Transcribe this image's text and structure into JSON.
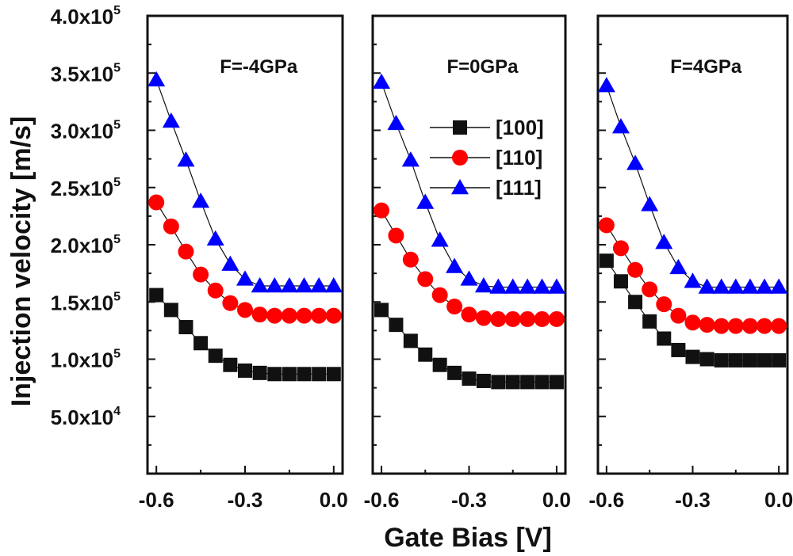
{
  "chart_data": {
    "type": "scatter",
    "title": "",
    "xlabel": "Gate Bias [V]",
    "ylabel": "Injection velocity [m/s]",
    "x": [
      -0.6,
      -0.55,
      -0.5,
      -0.45,
      -0.4,
      -0.35,
      -0.3,
      -0.25,
      -0.2,
      -0.15,
      -0.1,
      -0.05,
      0.0
    ],
    "xlim": [
      -0.63,
      0.03
    ],
    "ylim": [
      0,
      400000
    ],
    "x_ticks": [
      {
        "value": -0.6,
        "label": "-0.6"
      },
      {
        "value": -0.3,
        "label": "-0.3"
      },
      {
        "value": 0.0,
        "label": "0.0"
      }
    ],
    "y_ticks": [
      {
        "value": 50000,
        "mant": "5.0x10",
        "exp": "4"
      },
      {
        "value": 100000,
        "mant": "1.0x10",
        "exp": "5"
      },
      {
        "value": 150000,
        "mant": "1.5x10",
        "exp": "5"
      },
      {
        "value": 200000,
        "mant": "2.0x10",
        "exp": "5"
      },
      {
        "value": 250000,
        "mant": "2.5x10",
        "exp": "5"
      },
      {
        "value": 300000,
        "mant": "3.0x10",
        "exp": "5"
      },
      {
        "value": 350000,
        "mant": "3.5x10",
        "exp": "5"
      },
      {
        "value": 400000,
        "mant": "4.0x10",
        "exp": "5"
      }
    ],
    "legend": {
      "placement": "upper-right of middle panel",
      "entries": [
        {
          "label": "[100]",
          "marker": "square",
          "color": "#111111"
        },
        {
          "label": "[110]",
          "marker": "circle",
          "color": "#ff0000"
        },
        {
          "label": "[111]",
          "marker": "triangle",
          "color": "#0000ff"
        }
      ]
    },
    "panels": [
      {
        "label": "F=-4GPa",
        "series": [
          {
            "name": "[100]",
            "values": [
              156000,
              143000,
              128000,
              114000,
              103000,
              95000,
              90000,
              88000,
              87000,
              87000,
              87000,
              87000,
              87000
            ]
          },
          {
            "name": "[110]",
            "values": [
              237000,
              216000,
              194000,
              174000,
              160000,
              149000,
              143000,
              139000,
              138000,
              138000,
              138000,
              138000,
              138000
            ]
          },
          {
            "name": "[111]",
            "values": [
              344000,
              308000,
              274000,
              238000,
              205000,
              183000,
              170000,
              164000,
              164000,
              164000,
              164000,
              164000,
              164000
            ]
          }
        ]
      },
      {
        "label": "F=0GPa",
        "series": [
          {
            "name": "[100]",
            "values": [
              143000,
              130000,
              116000,
              104000,
              95000,
              88000,
              83000,
              81000,
              80000,
              80000,
              80000,
              80000,
              80000
            ]
          },
          {
            "name": "[110]",
            "values": [
              230000,
              208000,
              187000,
              170000,
              156000,
              146000,
              139000,
              136000,
              135000,
              135000,
              135000,
              135000,
              135000
            ]
          },
          {
            "name": "[111]",
            "values": [
              342000,
              306000,
              274000,
              237000,
              204000,
              181000,
              170000,
              164000,
              163000,
              163000,
              163000,
              163000,
              163000
            ]
          }
        ]
      },
      {
        "label": "F=4GPa",
        "series": [
          {
            "name": "[100]",
            "values": [
              186000,
              168000,
              150000,
              133000,
              118000,
              108000,
              102000,
              100000,
              99000,
              99000,
              99000,
              99000,
              99000
            ]
          },
          {
            "name": "[110]",
            "values": [
              217000,
              197000,
              178000,
              161000,
              148000,
              138000,
              132000,
              130000,
              129000,
              129000,
              129000,
              129000,
              129000
            ]
          },
          {
            "name": "[111]",
            "values": [
              339000,
              303000,
              271000,
              235000,
              202000,
              180000,
              168000,
              163000,
              163000,
              163000,
              163000,
              163000,
              163000
            ]
          }
        ]
      }
    ]
  }
}
